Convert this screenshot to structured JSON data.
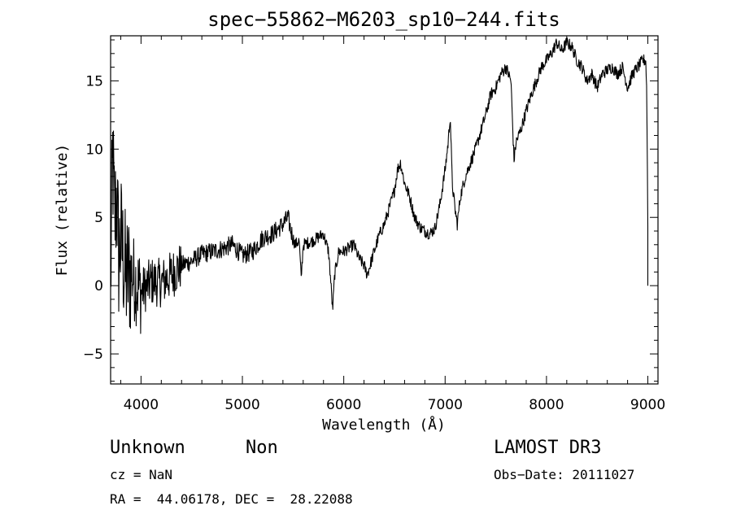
{
  "chart_data": {
    "type": "line",
    "title": "spec−55862−M6203_sp10−244.fits",
    "xlabel": "Wavelength (Å)",
    "ylabel": "Flux (relative)",
    "xlim": [
      3700,
      9100
    ],
    "ylim": [
      -7.2,
      18.3
    ],
    "x_ticks": [
      4000,
      5000,
      6000,
      7000,
      8000,
      9000
    ],
    "y_ticks": [
      -5,
      0,
      5,
      10,
      15
    ],
    "x_tick_labels": [
      "4000",
      "5000",
      "6000",
      "7000",
      "8000",
      "9000"
    ],
    "y_tick_labels": [
      "−5",
      "0",
      "5",
      "10",
      "15"
    ],
    "line_color": "#000000",
    "series": [
      {
        "name": "flux",
        "anchors": [
          [
            3700,
            0
          ],
          [
            3720,
            9.5
          ],
          [
            3740,
            4.5
          ],
          [
            3760,
            6.8
          ],
          [
            3780,
            2.0
          ],
          [
            3800,
            3.5
          ],
          [
            3850,
            0.5
          ],
          [
            3900,
            1.0
          ],
          [
            4000,
            -0.5
          ],
          [
            4100,
            0.3
          ],
          [
            4200,
            0.2
          ],
          [
            4300,
            0.8
          ],
          [
            4400,
            1.5
          ],
          [
            4500,
            1.8
          ],
          [
            4600,
            2.3
          ],
          [
            4700,
            2.5
          ],
          [
            4800,
            2.7
          ],
          [
            4900,
            3.0
          ],
          [
            5000,
            2.2
          ],
          [
            5100,
            2.5
          ],
          [
            5200,
            3.5
          ],
          [
            5300,
            3.8
          ],
          [
            5400,
            4.5
          ],
          [
            5450,
            5.0
          ],
          [
            5480,
            4.0
          ],
          [
            5520,
            3.0
          ],
          [
            5560,
            3.3
          ],
          [
            5580,
            0.5
          ],
          [
            5600,
            3.0
          ],
          [
            5700,
            3.3
          ],
          [
            5800,
            3.8
          ],
          [
            5850,
            2.5
          ],
          [
            5870,
            0.5
          ],
          [
            5890,
            -1.8
          ],
          [
            5910,
            0.8
          ],
          [
            5950,
            2.5
          ],
          [
            6000,
            2.5
          ],
          [
            6100,
            3.0
          ],
          [
            6150,
            2.0
          ],
          [
            6200,
            1.5
          ],
          [
            6230,
            0.8
          ],
          [
            6260,
            1.5
          ],
          [
            6300,
            2.5
          ],
          [
            6350,
            3.7
          ],
          [
            6400,
            4.5
          ],
          [
            6450,
            5.7
          ],
          [
            6500,
            7.0
          ],
          [
            6530,
            8.5
          ],
          [
            6560,
            9.0
          ],
          [
            6600,
            7.5
          ],
          [
            6650,
            6.5
          ],
          [
            6700,
            5.0
          ],
          [
            6750,
            4.3
          ],
          [
            6800,
            4.0
          ],
          [
            6850,
            3.8
          ],
          [
            6900,
            4.2
          ],
          [
            6950,
            6.0
          ],
          [
            7000,
            8.5
          ],
          [
            7030,
            10.5
          ],
          [
            7050,
            12.5
          ],
          [
            7070,
            7.5
          ],
          [
            7100,
            5.5
          ],
          [
            7120,
            4.5
          ],
          [
            7150,
            6.5
          ],
          [
            7200,
            8.0
          ],
          [
            7300,
            10.0
          ],
          [
            7400,
            12.5
          ],
          [
            7450,
            14.0
          ],
          [
            7500,
            14.5
          ],
          [
            7550,
            15.5
          ],
          [
            7600,
            16.0
          ],
          [
            7650,
            15.0
          ],
          [
            7670,
            11.0
          ],
          [
            7680,
            9.2
          ],
          [
            7700,
            10.5
          ],
          [
            7750,
            11.5
          ],
          [
            7800,
            12.8
          ],
          [
            7850,
            14.0
          ],
          [
            7900,
            15.0
          ],
          [
            7950,
            16.0
          ],
          [
            8000,
            16.5
          ],
          [
            8050,
            17.0
          ],
          [
            8100,
            17.8
          ],
          [
            8150,
            17.2
          ],
          [
            8200,
            17.8
          ],
          [
            8250,
            17.5
          ],
          [
            8300,
            16.5
          ],
          [
            8350,
            16.0
          ],
          [
            8400,
            15.0
          ],
          [
            8450,
            15.5
          ],
          [
            8500,
            14.5
          ],
          [
            8550,
            15.5
          ],
          [
            8600,
            15.8
          ],
          [
            8650,
            16.0
          ],
          [
            8700,
            15.5
          ],
          [
            8750,
            16.0
          ],
          [
            8800,
            14.5
          ],
          [
            8850,
            15.5
          ],
          [
            8900,
            16.0
          ],
          [
            8950,
            16.5
          ],
          [
            8980,
            16.5
          ],
          [
            8990,
            14.0
          ],
          [
            9000,
            4.5
          ]
        ]
      }
    ]
  },
  "info": {
    "object_class": "Unknown",
    "object_subclass": "Non",
    "survey": "LAMOST DR3",
    "cz": "cz = NaN",
    "obs_date": "Obs−Date: 20111027",
    "coords": "RA =  44.06178, DEC =  28.22088"
  }
}
